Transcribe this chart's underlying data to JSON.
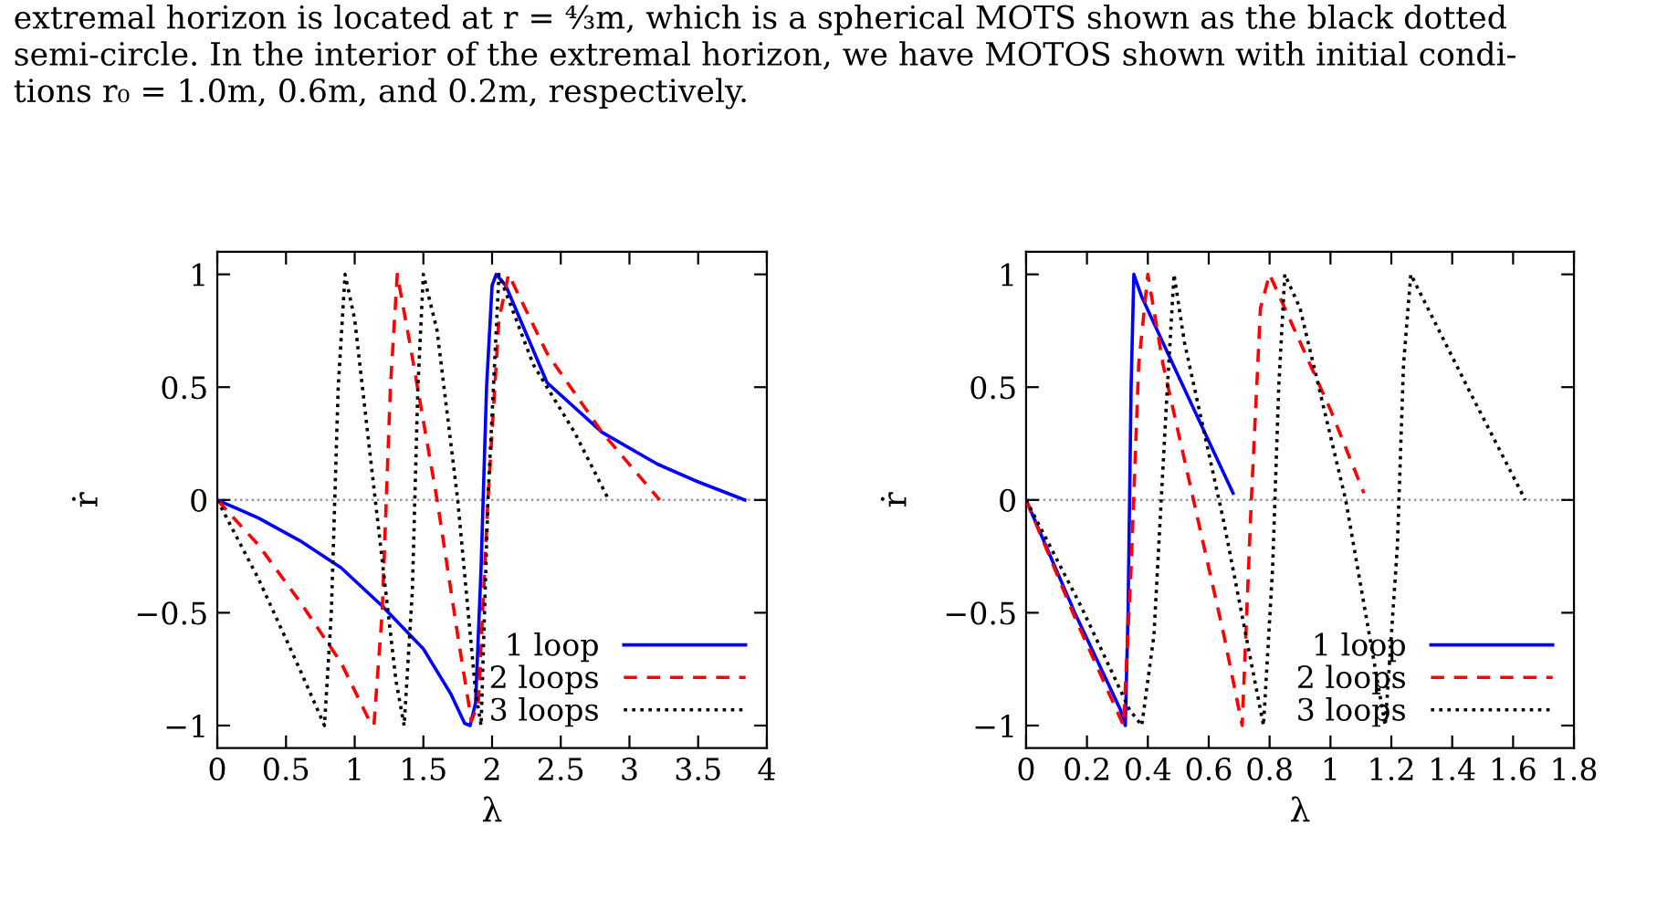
{
  "chart_data": [
    {
      "type": "line",
      "xlabel": "λ",
      "ylabel": "ṙ",
      "xlim": [
        0,
        4
      ],
      "ylim": [
        -1.1,
        1.1
      ],
      "xticks": [
        0,
        0.5,
        1,
        1.5,
        2,
        2.5,
        3,
        3.5,
        4
      ],
      "yticks": [
        -1,
        -0.5,
        0,
        0.5,
        1
      ],
      "grid": false,
      "legend": "bottom right",
      "ref_lines": [
        {
          "axis": "y",
          "value": 0,
          "label": null,
          "color": "#999999",
          "line_style": "dotted"
        }
      ],
      "annotations": [
        "extremal horizon is located at r = ⁴⁄₃m, which is a spherical MOTS shown as the black dotted\nsemi-circle. In the interior of the extremal horizon, we have MOTOS shown with initial condi-\ntions r₀ = 1.0m, 0.6m, and 0.2m, respectively."
      ],
      "series": [
        {
          "name": "1 loop",
          "color": "#0000ff",
          "line_style": "solid",
          "x": [
            0,
            0.3,
            0.6,
            0.9,
            1.2,
            1.5,
            1.7,
            1.8,
            1.84,
            1.88,
            1.92,
            1.96,
            2.0,
            2.03,
            2.1,
            2.4,
            2.8,
            3.2,
            3.5,
            3.84
          ],
          "values": [
            0,
            -0.08,
            -0.18,
            -0.3,
            -0.47,
            -0.66,
            -0.86,
            -0.99,
            -1,
            -0.9,
            -0.3,
            0.5,
            0.95,
            1,
            0.95,
            0.52,
            0.3,
            0.16,
            0.08,
            0
          ]
        },
        {
          "name": "2 loops",
          "color": "#ff0000",
          "line_style": "dashed",
          "x": [
            0,
            0.3,
            0.6,
            0.9,
            1.1,
            1.14,
            1.2,
            1.26,
            1.31,
            1.4,
            1.6,
            1.75,
            1.85,
            1.9,
            1.97,
            2.05,
            2.12,
            2.4,
            2.8,
            3.22
          ],
          "values": [
            0,
            -0.2,
            -0.45,
            -0.72,
            -0.97,
            -1,
            -0.5,
            0.5,
            1,
            0.7,
            0,
            -0.6,
            -0.98,
            -0.9,
            0,
            0.8,
            1,
            0.65,
            0.3,
            0
          ]
        },
        {
          "name": "3 loops",
          "color": "#000000",
          "line_style": "dotted",
          "x": [
            0,
            0.3,
            0.6,
            0.78,
            0.83,
            0.88,
            0.93,
            1.0,
            1.15,
            1.3,
            1.36,
            1.42,
            1.46,
            1.5,
            1.6,
            1.75,
            1.88,
            1.92,
            1.97,
            2.05,
            2.3,
            2.6,
            2.85
          ],
          "values": [
            0,
            -0.35,
            -0.75,
            -1,
            -0.5,
            0.5,
            1,
            0.8,
            0,
            -0.8,
            -1,
            -0.4,
            0.5,
            1,
            0.75,
            0,
            -0.85,
            -1,
            0,
            1,
            0.6,
            0.3,
            0
          ]
        }
      ]
    },
    {
      "type": "line",
      "xlabel": "λ",
      "ylabel": "ṙ",
      "xlim": [
        0,
        1.8
      ],
      "ylim": [
        -1.1,
        1.1
      ],
      "xticks": [
        0,
        0.2,
        0.4,
        0.6,
        0.8,
        1,
        1.2,
        1.4,
        1.6,
        1.8
      ],
      "yticks": [
        -1,
        -0.5,
        0,
        0.5,
        1
      ],
      "grid": false,
      "legend": "bottom right",
      "ref_lines": [
        {
          "axis": "y",
          "value": 0,
          "label": null,
          "color": "#999999",
          "line_style": "dotted"
        }
      ],
      "series": [
        {
          "name": "1 loop",
          "color": "#0000ff",
          "line_style": "solid",
          "x": [
            0,
            0.16,
            0.31,
            0.326,
            0.335,
            0.345,
            0.354,
            0.38,
            0.5,
            0.68
          ],
          "values": [
            0,
            -0.5,
            -0.93,
            -1,
            -0.5,
            0.5,
            1,
            0.9,
            0.55,
            0.03
          ]
        },
        {
          "name": "2 loops",
          "color": "#ff0000",
          "line_style": "dashed",
          "x": [
            0,
            0.16,
            0.32,
            0.345,
            0.37,
            0.4,
            0.45,
            0.55,
            0.65,
            0.71,
            0.74,
            0.77,
            0.8,
            0.85,
            1.0,
            1.11
          ],
          "values": [
            0,
            -0.52,
            -1,
            -0.3,
            0.6,
            1,
            0.6,
            0,
            -0.6,
            -1,
            0,
            0.85,
            1,
            0.85,
            0.4,
            0.03
          ]
        },
        {
          "name": "3 loops",
          "color": "#000000",
          "line_style": "dotted",
          "x": [
            0,
            0.18,
            0.34,
            0.38,
            0.42,
            0.46,
            0.486,
            0.52,
            0.65,
            0.78,
            0.81,
            0.83,
            0.85,
            0.9,
            1.05,
            1.18,
            1.22,
            1.24,
            1.264,
            1.45,
            1.64
          ],
          "values": [
            0,
            -0.47,
            -0.93,
            -1,
            -0.6,
            0.4,
            1,
            0.7,
            -0.1,
            -1,
            -0.3,
            0.5,
            1,
            0.85,
            0,
            -1,
            -0.2,
            0.6,
            1,
            0.5,
            0
          ]
        }
      ]
    }
  ]
}
